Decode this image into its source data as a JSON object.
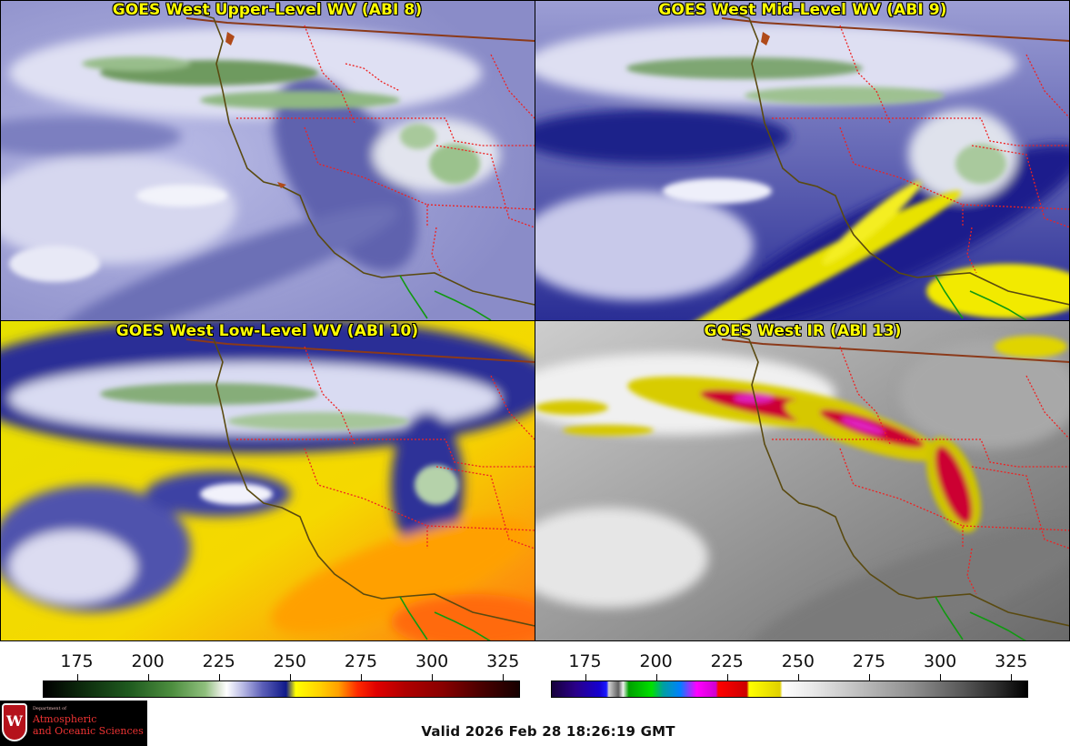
{
  "panels": {
    "upper_left": {
      "title": "GOES West Upper-Level WV (ABI 8)"
    },
    "upper_right": {
      "title": "GOES West Mid-Level WV (ABI 9)"
    },
    "lower_left": {
      "title": "GOES West Low-Level WV (ABI 10)"
    },
    "lower_right": {
      "title": "GOES West IR (ABI 13)"
    }
  },
  "colorbars": {
    "left": {
      "ticks": [
        "175",
        "200",
        "225",
        "250",
        "275",
        "300",
        "325"
      ],
      "tick_values": [
        175,
        200,
        225,
        250,
        275,
        300,
        325
      ],
      "range": [
        163,
        331
      ]
    },
    "right": {
      "ticks": [
        "175",
        "200",
        "225",
        "250",
        "275",
        "300",
        "325"
      ],
      "tick_values": [
        175,
        200,
        225,
        250,
        275,
        300,
        325
      ],
      "range": [
        163,
        331
      ]
    }
  },
  "logo": {
    "dept_line": "Department of",
    "name_line1": "Atmospheric",
    "name_line2": "and Oceanic Sciences",
    "crest_letter": "W"
  },
  "valid_time": "Valid 2026 Feb 28 18:26:19 GMT",
  "colors": {
    "title_text": "#ffff00",
    "coastline": "#5a4a10",
    "state_borders": "#ee2222",
    "intl_border": "#8b3a1a",
    "mexico_coast": "#119911"
  }
}
